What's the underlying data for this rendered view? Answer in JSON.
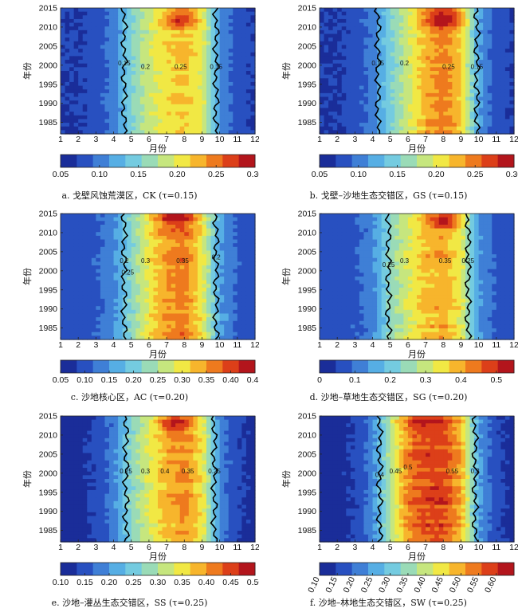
{
  "figure_palette": [
    "#1a2d99",
    "#2850c0",
    "#3f7fd6",
    "#56aee4",
    "#74cbe0",
    "#9adbb7",
    "#c6e67e",
    "#f1e844",
    "#f7b52c",
    "#ee7a1e",
    "#dc3f19",
    "#b3151c"
  ],
  "chart_data": [
    {
      "type": "heatmap",
      "id": "a",
      "caption": "a. 戈壁风蚀荒漠区，CK (τ=0.15)",
      "xlabel": "月份",
      "ylabel": "年份",
      "x_ticks": [
        "1",
        "2",
        "3",
        "4",
        "5",
        "6",
        "7",
        "8",
        "9",
        "10",
        "11",
        "12"
      ],
      "y_ticks": [
        "1985",
        "1990",
        "1995",
        "2000",
        "2005",
        "2010",
        "2015"
      ],
      "xlim": [
        1,
        12
      ],
      "ylim": [
        1982,
        2015
      ],
      "colorbar_ticks": [
        "0.05",
        "0.10",
        "0.15",
        "0.20",
        "0.25",
        "0.30"
      ],
      "vmin": 0.05,
      "vmax": 0.3,
      "monthly_profile": [
        0.07,
        0.07,
        0.08,
        0.1,
        0.15,
        0.19,
        0.21,
        0.22,
        0.2,
        0.11,
        0.08,
        0.07
      ],
      "hotspot": {
        "month": 7.8,
        "year": 2012,
        "value": 0.28
      },
      "contour_labels": [
        {
          "text": "0.15",
          "month": 4.6,
          "year": 2000
        },
        {
          "text": "0.2",
          "month": 5.8,
          "year": 1999
        },
        {
          "text": "0.25",
          "month": 7.8,
          "year": 1999
        },
        {
          "text": "0.15",
          "month": 9.8,
          "year": 1999
        }
      ]
    },
    {
      "type": "heatmap",
      "id": "b",
      "caption": "b. 戈壁–沙地生态交错区，GS (τ=0.15)",
      "xlabel": "月份",
      "ylabel": "年份",
      "x_ticks": [
        "1",
        "2",
        "3",
        "4",
        "5",
        "6",
        "7",
        "8",
        "9",
        "10",
        "11",
        "12"
      ],
      "y_ticks": [
        "1985",
        "1990",
        "1995",
        "2000",
        "2005",
        "2010",
        "2015"
      ],
      "xlim": [
        1,
        12
      ],
      "ylim": [
        1982,
        2015
      ],
      "colorbar_ticks": [
        "0.05",
        "0.10",
        "0.15",
        "0.20",
        "0.25",
        "0.30"
      ],
      "vmin": 0.05,
      "vmax": 0.3,
      "monthly_profile": [
        0.07,
        0.07,
        0.08,
        0.1,
        0.15,
        0.19,
        0.23,
        0.25,
        0.22,
        0.12,
        0.08,
        0.07
      ],
      "hotspot": {
        "month": 8,
        "year": 2012,
        "value": 0.3
      },
      "contour_labels": [
        {
          "text": "0.15",
          "month": 4.3,
          "year": 2000
        },
        {
          "text": "0.2",
          "month": 5.8,
          "year": 2000
        },
        {
          "text": "0.25",
          "month": 8.3,
          "year": 1999
        },
        {
          "text": "0.15",
          "month": 9.9,
          "year": 1999
        }
      ]
    },
    {
      "type": "heatmap",
      "id": "c",
      "caption": "c. 沙地核心区，AC (τ=0.20)",
      "xlabel": "月份",
      "ylabel": "年份",
      "x_ticks": [
        "1",
        "2",
        "3",
        "4",
        "5",
        "6",
        "7",
        "8",
        "9",
        "10",
        "11",
        "12"
      ],
      "y_ticks": [
        "1985",
        "1990",
        "1995",
        "2000",
        "2005",
        "2010",
        "2015"
      ],
      "xlim": [
        1,
        12
      ],
      "ylim": [
        1982,
        2015
      ],
      "colorbar_ticks": [
        "0.05",
        "0.10",
        "0.15",
        "0.20",
        "0.25",
        "0.30",
        "0.35",
        "0.40",
        "0.45"
      ],
      "vmin": 0.05,
      "vmax": 0.45,
      "monthly_profile": [
        0.1,
        0.1,
        0.11,
        0.14,
        0.22,
        0.3,
        0.35,
        0.37,
        0.3,
        0.16,
        0.11,
        0.1
      ],
      "hotspot": {
        "month": 7.5,
        "year": 2014,
        "value": 0.44
      },
      "contour_labels": [
        {
          "text": "0.2",
          "month": 4.6,
          "year": 2002
        },
        {
          "text": "0.25",
          "month": 4.8,
          "year": 1999
        },
        {
          "text": "0.3",
          "month": 5.8,
          "year": 2002
        },
        {
          "text": "0.35",
          "month": 7.9,
          "year": 2002
        },
        {
          "text": "0.2",
          "month": 9.8,
          "year": 2003
        }
      ]
    },
    {
      "type": "heatmap",
      "id": "d",
      "caption": "d. 沙地–草地生态交错区，SG (τ=0.20)",
      "xlabel": "月份",
      "ylabel": "年份",
      "x_ticks": [
        "1",
        "2",
        "3",
        "4",
        "5",
        "6",
        "7",
        "8",
        "9",
        "10",
        "11",
        "12"
      ],
      "y_ticks": [
        "1985",
        "1990",
        "1995",
        "2000",
        "2005",
        "2010",
        "2015"
      ],
      "xlim": [
        1,
        12
      ],
      "ylim": [
        1982,
        2015
      ],
      "colorbar_ticks": [
        "0",
        "0.1",
        "0.2",
        "0.3",
        "0.4",
        "0.5"
      ],
      "vmin": 0,
      "vmax": 0.55,
      "monthly_profile": [
        0.06,
        0.06,
        0.08,
        0.12,
        0.24,
        0.32,
        0.38,
        0.4,
        0.33,
        0.14,
        0.08,
        0.06
      ],
      "hotspot": {
        "month": 8,
        "year": 2013,
        "value": 0.53
      },
      "contour_labels": [
        {
          "text": "0.25",
          "month": 4.9,
          "year": 2001
        },
        {
          "text": "0.3",
          "month": 5.8,
          "year": 2002
        },
        {
          "text": "0.35",
          "month": 8.1,
          "year": 2002
        },
        {
          "text": "0.25",
          "month": 9.4,
          "year": 2002
        }
      ]
    },
    {
      "type": "heatmap",
      "id": "e",
      "caption": "e. 沙地–灌丛生态交错区，SS (τ=0.25)",
      "xlabel": "月份",
      "ylabel": "年份",
      "x_ticks": [
        "1",
        "2",
        "3",
        "4",
        "5",
        "6",
        "7",
        "8",
        "9",
        "10",
        "11",
        "12"
      ],
      "y_ticks": [
        "1985",
        "1990",
        "1995",
        "2000",
        "2005",
        "2010",
        "2015"
      ],
      "xlim": [
        1,
        12
      ],
      "ylim": [
        1982,
        2015
      ],
      "colorbar_ticks": [
        "0.10",
        "0.15",
        "0.20",
        "0.25",
        "0.30",
        "0.35",
        "0.40",
        "0.45",
        "0.50"
      ],
      "vmin": 0.1,
      "vmax": 0.5,
      "monthly_profile": [
        0.12,
        0.12,
        0.14,
        0.18,
        0.27,
        0.33,
        0.38,
        0.4,
        0.35,
        0.19,
        0.14,
        0.12
      ],
      "hotspot": {
        "month": 7.5,
        "year": 2013,
        "value": 0.48
      },
      "contour_labels": [
        {
          "text": "0.25",
          "month": 4.7,
          "year": 2000
        },
        {
          "text": "0.3",
          "month": 5.8,
          "year": 2000
        },
        {
          "text": "0.4",
          "month": 6.9,
          "year": 2000
        },
        {
          "text": "0.35",
          "month": 8.2,
          "year": 2000
        },
        {
          "text": "0.25",
          "month": 9.7,
          "year": 2000
        }
      ]
    },
    {
      "type": "heatmap",
      "id": "f",
      "caption": "f. 沙地–林地生态交错区，SW (τ=0.25)",
      "xlabel": "月份",
      "ylabel": "年份",
      "x_ticks": [
        "1",
        "2",
        "3",
        "4",
        "5",
        "6",
        "7",
        "8",
        "9",
        "10",
        "11",
        "12"
      ],
      "y_ticks": [
        "1985",
        "1990",
        "1995",
        "2000",
        "2005",
        "2010",
        "2015"
      ],
      "xlim": [
        1,
        12
      ],
      "ylim": [
        1982,
        2015
      ],
      "colorbar_ticks": [
        "0.10",
        "0.15",
        "0.20",
        "0.25",
        "0.30",
        "0.35",
        "0.40",
        "0.45",
        "0.50",
        "0.55",
        "0.60"
      ],
      "vmin": 0.1,
      "vmax": 0.65,
      "monthly_profile": [
        0.13,
        0.13,
        0.15,
        0.22,
        0.38,
        0.53,
        0.58,
        0.58,
        0.5,
        0.25,
        0.16,
        0.13
      ],
      "hotspot": {
        "month": 7,
        "year": 2013,
        "value": 0.63
      },
      "contour_labels": [
        {
          "text": "0.4",
          "month": 4.4,
          "year": 1999
        },
        {
          "text": "0.45",
          "month": 5.3,
          "year": 2000
        },
        {
          "text": "0.5",
          "month": 6,
          "year": 2001
        },
        {
          "text": "0.55",
          "month": 8.5,
          "year": 2000
        },
        {
          "text": "0.3",
          "month": 9.8,
          "year": 2000
        }
      ]
    }
  ]
}
